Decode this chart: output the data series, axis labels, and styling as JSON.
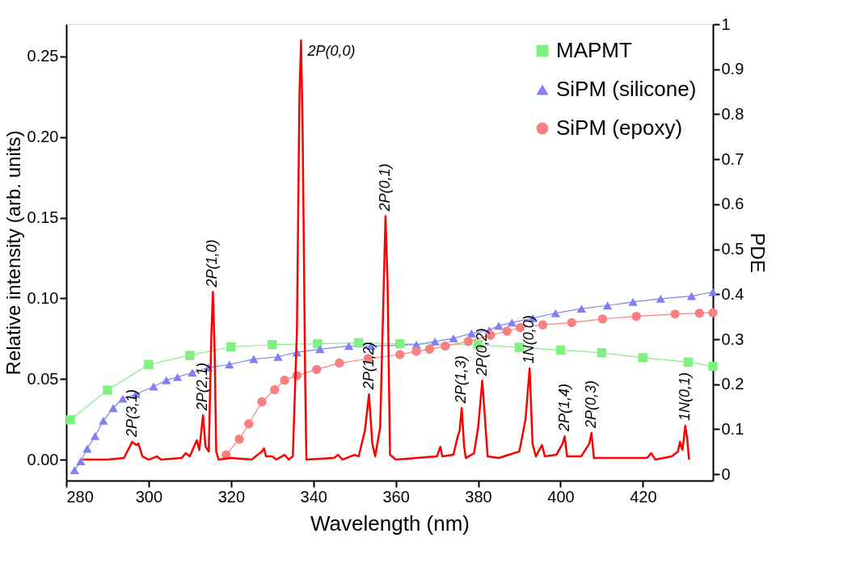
{
  "chart_data": {
    "type": "line",
    "xlabel": "Wavelength (nm)",
    "ylabel": "Relative intensity (arb. units)",
    "y2label": "PDE",
    "xlim": [
      280,
      437
    ],
    "xticks": [
      280,
      300,
      320,
      340,
      360,
      380,
      400,
      420
    ],
    "ylim": [
      -0.013,
      0.27
    ],
    "yticks": [
      {
        "value": 0,
        "label": "0.00"
      },
      {
        "value": 0.05,
        "label": "0.05"
      },
      {
        "value": 0.1,
        "label": "0.10"
      },
      {
        "value": 0.15,
        "label": "0.15"
      },
      {
        "value": 0.2,
        "label": "0.20"
      },
      {
        "value": 0.25,
        "label": "0.25"
      }
    ],
    "y2lim": [
      -0.014,
      1
    ],
    "y2ticks": [
      0,
      0.1,
      0.2,
      0.3,
      0.4,
      0.5,
      0.6,
      0.7,
      0.8,
      0.9,
      1
    ],
    "grid": false,
    "legend": "top right",
    "series": [
      {
        "axis": "y",
        "marker": "none",
        "color": "#ff0000",
        "x": [
          284,
          290,
          294,
          295,
          296,
          297,
          297.5,
          298.5,
          300,
          302,
          303,
          308,
          309,
          310,
          311,
          311.7,
          312.3,
          313.2,
          313.8,
          314.6,
          315.2,
          315.6,
          316,
          316.4,
          317,
          320,
          325,
          327.5,
          328,
          328.5,
          330,
          331,
          333,
          334,
          335,
          336,
          336.6,
          337,
          337.4,
          338,
          338.3,
          345,
          346,
          347,
          350,
          351,
          352.5,
          353.5,
          354.3,
          355,
          356.2,
          357,
          357.5,
          358,
          358.6,
          360,
          365,
          370,
          370.8,
          371.3,
          374,
          375,
          375.5,
          376,
          376.6,
          377,
          379,
          380,
          381,
          381.8,
          382.3,
          385,
          390,
          391.5,
          392.5,
          393.2,
          394,
          395.5,
          396.2,
          399,
          400.5,
          401,
          401.6,
          405,
          407,
          407.5,
          408.1,
          415,
          421,
          422,
          423,
          427,
          428.5,
          429,
          429.6,
          430.3,
          430.8,
          431.2
        ],
        "values": [
          0,
          0,
          0.001,
          0.006,
          0.011,
          0.009,
          0.01,
          0.002,
          0,
          0.002,
          0,
          0.001,
          0.004,
          0.002,
          0.008,
          0.012,
          0.006,
          0.0275,
          0.008,
          0.005,
          0.075,
          0.104,
          0.07,
          0.005,
          0,
          0.001,
          0,
          0.005,
          0.007,
          0.002,
          0.002,
          0,
          0.003,
          0,
          0.002,
          0.08,
          0.225,
          0.26,
          0.2,
          0.05,
          0,
          0.001,
          0.003,
          0,
          0.003,
          0.002,
          0.018,
          0.0405,
          0.01,
          0.002,
          0.02,
          0.1,
          0.151,
          0.11,
          0.003,
          0,
          0.001,
          0.002,
          0.008,
          0.002,
          0.003,
          0.014,
          0.018,
          0.032,
          0.008,
          0.001,
          0.004,
          0.02,
          0.049,
          0.02,
          0.002,
          0.001,
          0.005,
          0.025,
          0.0565,
          0.01,
          0.002,
          0.009,
          0.002,
          0.003,
          0.01,
          0.0145,
          0.002,
          0.002,
          0.01,
          0.0165,
          0.001,
          0.001,
          0.001,
          0.004,
          0,
          0.002,
          0.005,
          0.011,
          0.006,
          0.021,
          0.012,
          0
        ]
      },
      {
        "name": "MAPMT",
        "axis": "y2",
        "marker": "square",
        "color": "#80f080",
        "x": [
          281,
          290,
          300,
          310,
          320,
          330,
          341,
          351,
          361,
          380,
          390,
          400,
          410,
          420,
          431,
          437
        ],
        "values": [
          0.121,
          0.187,
          0.244,
          0.264,
          0.283,
          0.288,
          0.29,
          0.292,
          0.29,
          0.288,
          0.282,
          0.276,
          0.27,
          0.259,
          0.249,
          0.24
        ]
      },
      {
        "name": "SiPM (silicone)",
        "axis": "y2",
        "marker": "triangle",
        "color": "#8080f0",
        "x": [
          282,
          283.5,
          285.1,
          287,
          289,
          291.4,
          293.7,
          296.9,
          301.2,
          304.3,
          307,
          310.6,
          314.5,
          319.6,
          325.5,
          331.4,
          336,
          341.6,
          348.6,
          354,
          365,
          369.5,
          374,
          378.4,
          382.7,
          385,
          388.2,
          393.3,
          398.8,
          405.1,
          411.4,
          417.6,
          424.3,
          431.8,
          437
        ],
        "values": [
          0.009,
          0.029,
          0.057,
          0.085,
          0.119,
          0.147,
          0.168,
          0.178,
          0.195,
          0.209,
          0.216,
          0.226,
          0.237,
          0.244,
          0.256,
          0.261,
          0.271,
          0.278,
          0.285,
          0.285,
          0.288,
          0.295,
          0.302,
          0.313,
          0.32,
          0.33,
          0.337,
          0.347,
          0.358,
          0.368,
          0.375,
          0.383,
          0.39,
          0.396,
          0.405
        ]
      },
      {
        "name": "SiPM (epoxy)",
        "axis": "y2",
        "marker": "circle",
        "color": "#f88080",
        "x": [
          318.8,
          322,
          324.3,
          327.5,
          330.6,
          333,
          336,
          340.8,
          346.3,
          353.3,
          361,
          365,
          368.2,
          372,
          377.6,
          383,
          387,
          390.2,
          395.7,
          402.7,
          410.2,
          418.4,
          427.8,
          433.7,
          437
        ],
        "values": [
          0.043,
          0.078,
          0.112,
          0.161,
          0.188,
          0.209,
          0.219,
          0.233,
          0.247,
          0.257,
          0.266,
          0.273,
          0.278,
          0.285,
          0.295,
          0.309,
          0.318,
          0.326,
          0.332,
          0.337,
          0.345,
          0.351,
          0.356,
          0.358,
          0.359
        ]
      }
    ],
    "annotations": [
      {
        "text": "2P(3,1)",
        "x": 296,
        "y": 0.011
      },
      {
        "text": "2P(2,1)",
        "x": 313.2,
        "y": 0.0275
      },
      {
        "text": "2P(1,0)",
        "x": 315.6,
        "y": 0.104
      },
      {
        "text": "2P(0,0)",
        "x": 337,
        "y": 0.26
      },
      {
        "text": "2P(1,2)",
        "x": 353.5,
        "y": 0.0405
      },
      {
        "text": "2P(0,1)",
        "x": 357.5,
        "y": 0.151
      },
      {
        "text": "2P(1,3)",
        "x": 376,
        "y": 0.032
      },
      {
        "text": "2P(0,2)",
        "x": 381,
        "y": 0.049
      },
      {
        "text": "1N(0,0)",
        "x": 392.5,
        "y": 0.0565
      },
      {
        "text": "2P(1,4)",
        "x": 401,
        "y": 0.0145
      },
      {
        "text": "2P(0,3)",
        "x": 407.5,
        "y": 0.0165
      },
      {
        "text": "1N(0,1)",
        "x": 430.3,
        "y": 0.021
      }
    ]
  }
}
